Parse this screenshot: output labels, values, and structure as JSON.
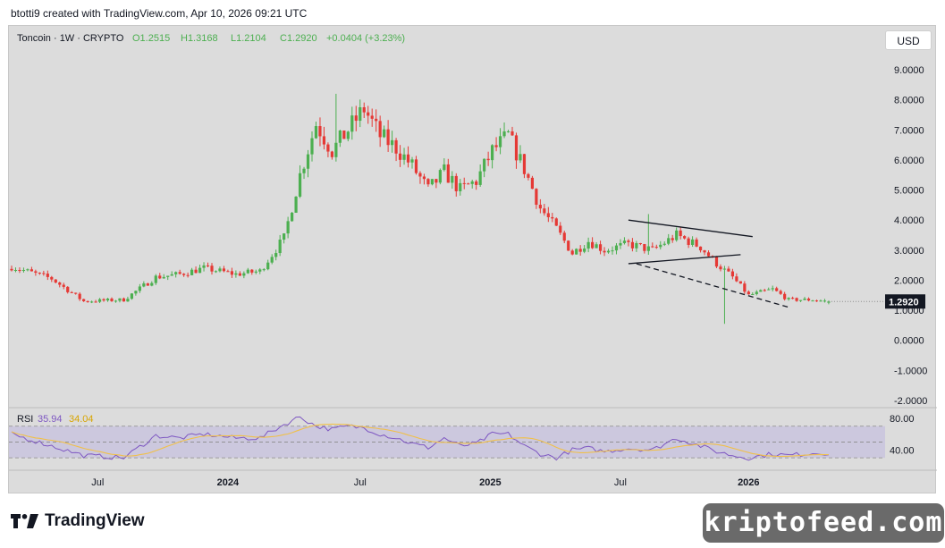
{
  "header": {
    "creator_line": "btotti9 created with TradingView.com, Apr 10, 2026 09:21 UTC"
  },
  "legend": {
    "symbol": "Toncoin · 1W · CRYPTO",
    "open": "O1.2515",
    "high": "H1.3168",
    "low": "L1.2104",
    "close": "C1.2920",
    "change": "+0.0404 (+3.23%)"
  },
  "currency_button": "USD",
  "price_axis_labels": [
    "9.0000",
    "8.0000",
    "7.0000",
    "6.0000",
    "5.0000",
    "4.0000",
    "3.0000",
    "2.0000",
    "1.0000",
    "0.0000",
    "-1.0000",
    "-2.0000"
  ],
  "last_price_label": "1.2920",
  "rsi": {
    "label": "RSI",
    "value": "35.94",
    "ma_value": "34.04",
    "axis_labels": [
      "80.00",
      "40.00"
    ]
  },
  "time_axis_labels": [
    "Jul",
    "2024",
    "Jul",
    "2025",
    "Jul",
    "2026"
  ],
  "footer": {
    "brand": "TradingView",
    "watermark": "kriptofeed.com"
  },
  "colors": {
    "up": "#4caf50",
    "down": "#e53935",
    "rsi_line": "#7e57c2",
    "rsi_ma": "#f0c04a",
    "rsi_band": "#ccc8de",
    "last_price_bg": "#131722"
  },
  "chart_data": {
    "type": "candlestick",
    "title": "Toncoin · 1W · CRYPTO",
    "currency": "USD",
    "interval": "1W",
    "last_close": 1.292,
    "ylim": [
      -2,
      9
    ],
    "x_tick_labels": [
      "Jul",
      "2024",
      "Jul",
      "2025",
      "Jul",
      "2026"
    ],
    "price_anchors": [
      {
        "t": 0,
        "p": 2.45
      },
      {
        "t": 10,
        "p": 2.05
      },
      {
        "t": 18,
        "p": 1.3
      },
      {
        "t": 28,
        "p": 1.35
      },
      {
        "t": 36,
        "p": 2.1
      },
      {
        "t": 42,
        "p": 2.2
      },
      {
        "t": 48,
        "p": 2.4
      },
      {
        "t": 56,
        "p": 2.2
      },
      {
        "t": 62,
        "p": 2.3
      },
      {
        "t": 68,
        "p": 3.4
      },
      {
        "t": 72,
        "p": 5.5
      },
      {
        "t": 76,
        "p": 7.2
      },
      {
        "t": 80,
        "p": 6.3
      },
      {
        "t": 84,
        "p": 7.0
      },
      {
        "t": 88,
        "p": 7.7
      },
      {
        "t": 92,
        "p": 6.8
      },
      {
        "t": 96,
        "p": 6.4
      },
      {
        "t": 100,
        "p": 5.8
      },
      {
        "t": 104,
        "p": 5.0
      },
      {
        "t": 108,
        "p": 5.6
      },
      {
        "t": 112,
        "p": 5.0
      },
      {
        "t": 116,
        "p": 5.3
      },
      {
        "t": 120,
        "p": 6.3
      },
      {
        "t": 124,
        "p": 6.8
      },
      {
        "t": 128,
        "p": 5.7
      },
      {
        "t": 132,
        "p": 4.4
      },
      {
        "t": 136,
        "p": 3.7
      },
      {
        "t": 140,
        "p": 2.9
      },
      {
        "t": 144,
        "p": 3.3
      },
      {
        "t": 148,
        "p": 3.0
      },
      {
        "t": 154,
        "p": 3.2
      },
      {
        "t": 160,
        "p": 3.0
      },
      {
        "t": 166,
        "p": 3.5
      },
      {
        "t": 172,
        "p": 3.1
      },
      {
        "t": 176,
        "p": 2.55
      },
      {
        "t": 180,
        "p": 2.1
      },
      {
        "t": 184,
        "p": 1.5
      },
      {
        "t": 190,
        "p": 1.7
      },
      {
        "t": 194,
        "p": 1.35
      },
      {
        "t": 200,
        "p": 1.35
      },
      {
        "t": 204,
        "p": 1.29
      }
    ],
    "wicks": [
      {
        "t": 178,
        "low": 0.55
      },
      {
        "t": 81,
        "high": 8.2
      },
      {
        "t": 159,
        "high": 4.2
      },
      {
        "t": 125,
        "high": 7.1
      }
    ],
    "drawings": [
      {
        "type": "trendline",
        "from": {
          "t": 154,
          "p": 4.0
        },
        "to": {
          "t": 185,
          "p": 3.45
        }
      },
      {
        "type": "trendline",
        "from": {
          "t": 154,
          "p": 2.55
        },
        "to": {
          "t": 182,
          "p": 2.85
        }
      },
      {
        "type": "dashed-trendline",
        "from": {
          "t": 156,
          "p": 2.55
        },
        "to": {
          "t": 194,
          "p": 1.1
        }
      }
    ],
    "rsi": {
      "ylim": [
        20,
        90
      ],
      "overbought": 70,
      "oversold": 30,
      "midline": 50,
      "value": 35.94,
      "ma": 34.04,
      "anchors": [
        {
          "t": 0,
          "v": 60
        },
        {
          "t": 10,
          "v": 45
        },
        {
          "t": 18,
          "v": 33
        },
        {
          "t": 28,
          "v": 30
        },
        {
          "t": 36,
          "v": 58
        },
        {
          "t": 42,
          "v": 55
        },
        {
          "t": 48,
          "v": 60
        },
        {
          "t": 56,
          "v": 55
        },
        {
          "t": 62,
          "v": 55
        },
        {
          "t": 68,
          "v": 72
        },
        {
          "t": 72,
          "v": 82
        },
        {
          "t": 76,
          "v": 70
        },
        {
          "t": 80,
          "v": 66
        },
        {
          "t": 84,
          "v": 70
        },
        {
          "t": 88,
          "v": 68
        },
        {
          "t": 92,
          "v": 60
        },
        {
          "t": 96,
          "v": 55
        },
        {
          "t": 100,
          "v": 48
        },
        {
          "t": 104,
          "v": 43
        },
        {
          "t": 108,
          "v": 55
        },
        {
          "t": 112,
          "v": 45
        },
        {
          "t": 116,
          "v": 48
        },
        {
          "t": 120,
          "v": 60
        },
        {
          "t": 124,
          "v": 60
        },
        {
          "t": 128,
          "v": 45
        },
        {
          "t": 132,
          "v": 35
        },
        {
          "t": 136,
          "v": 30
        },
        {
          "t": 140,
          "v": 40
        },
        {
          "t": 144,
          "v": 42
        },
        {
          "t": 148,
          "v": 38
        },
        {
          "t": 154,
          "v": 42
        },
        {
          "t": 160,
          "v": 40
        },
        {
          "t": 166,
          "v": 55
        },
        {
          "t": 172,
          "v": 45
        },
        {
          "t": 176,
          "v": 38
        },
        {
          "t": 180,
          "v": 33
        },
        {
          "t": 184,
          "v": 30
        },
        {
          "t": 190,
          "v": 35
        },
        {
          "t": 194,
          "v": 33
        },
        {
          "t": 200,
          "v": 36
        },
        {
          "t": 204,
          "v": 36
        }
      ]
    }
  }
}
